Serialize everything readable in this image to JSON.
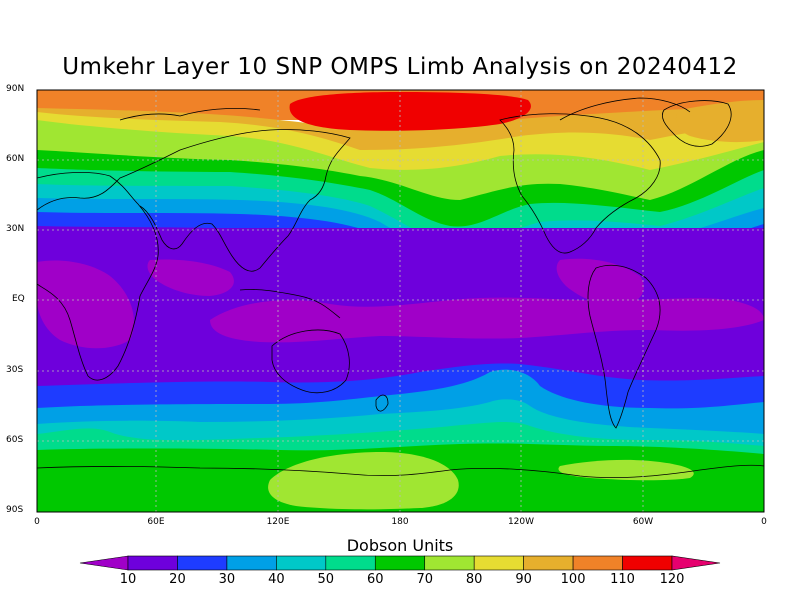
{
  "title": "Umkehr Layer 10 SNP OMPS Limb Analysis on 20240412",
  "y_ticks": [
    "90N",
    "60N",
    "30N",
    "EQ",
    "30S",
    "60S",
    "90S"
  ],
  "x_ticks": [
    "0",
    "60E",
    "120E",
    "180",
    "120W",
    "60W",
    "0"
  ],
  "colorbar": {
    "title": "Dobson Units",
    "levels": [
      "10",
      "20",
      "30",
      "40",
      "50",
      "60",
      "70",
      "80",
      "90",
      "100",
      "110",
      "120"
    ],
    "colors": [
      "#a000c8",
      "#6e00dc",
      "#1e3cff",
      "#00a0e6",
      "#00c8c8",
      "#00dc8c",
      "#00c800",
      "#a0e632",
      "#e6dc32",
      "#e6af2d",
      "#f08228",
      "#f00000",
      "#e6006e"
    ]
  },
  "map_colors": {
    "purple": "#a000c8",
    "violet": "#6e00dc",
    "blue": "#1e3cff",
    "skyblue": "#00a0e6",
    "cyan": "#00c8c8",
    "teal": "#00dc8c",
    "green": "#00c800",
    "lime": "#a0e632",
    "yellow": "#e6dc32",
    "gold": "#e6af2d",
    "orange": "#f08228",
    "red": "#f00000"
  }
}
